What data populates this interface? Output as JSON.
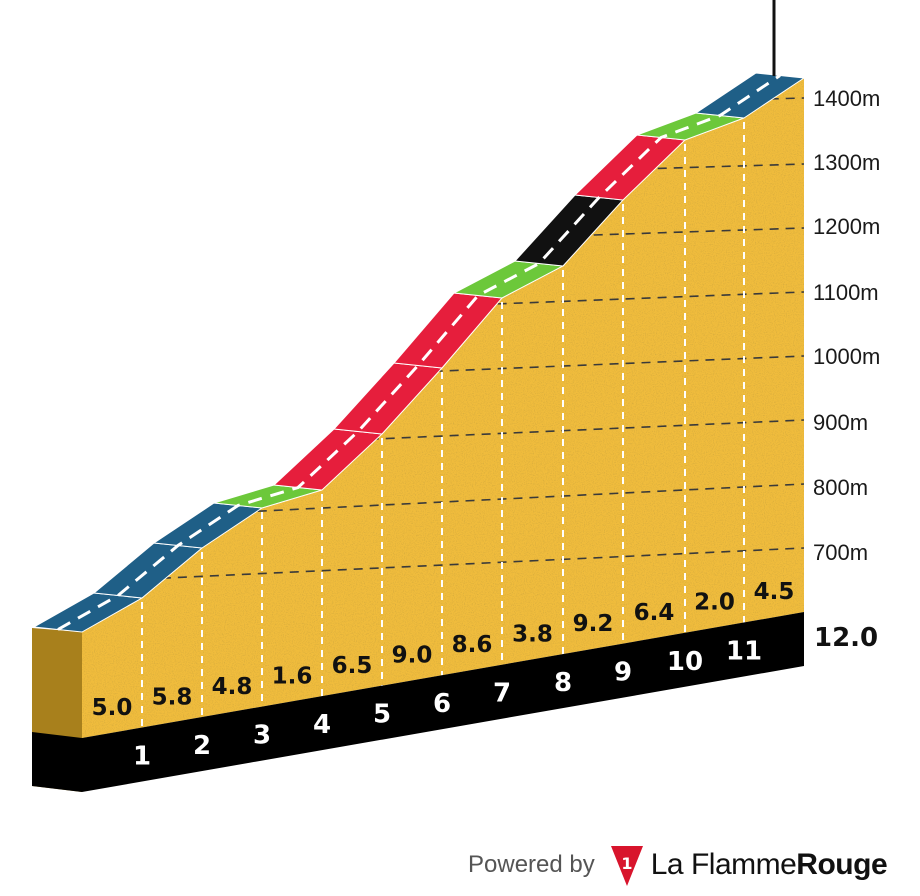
{
  "chart_data": {
    "type": "area",
    "title": "",
    "x_unit": "km",
    "y_unit": "m",
    "distance_total": "12.0",
    "km_markers": [
      "1",
      "2",
      "3",
      "4",
      "5",
      "6",
      "7",
      "8",
      "9",
      "10",
      "11"
    ],
    "y_ticks": [
      "700m",
      "800m",
      "900m",
      "1000m",
      "1100m",
      "1200m",
      "1300m",
      "1400m"
    ],
    "y_tick_values": [
      700,
      800,
      900,
      1000,
      1100,
      1200,
      1300,
      1400
    ],
    "segments": [
      {
        "gradient": "5.0",
        "color": "#1f5f87"
      },
      {
        "gradient": "5.8",
        "color": "#1f5f87"
      },
      {
        "gradient": "4.8",
        "color": "#1f5f87"
      },
      {
        "gradient": "1.6",
        "color": "#6cc83a"
      },
      {
        "gradient": "6.5",
        "color": "#e61e3c"
      },
      {
        "gradient": "9.0",
        "color": "#e61e3c"
      },
      {
        "gradient": "8.6",
        "color": "#e61e3c"
      },
      {
        "gradient": "3.8",
        "color": "#6cc83a"
      },
      {
        "gradient": "9.2",
        "color": "#111111"
      },
      {
        "gradient": "6.4",
        "color": "#e61e3c"
      },
      {
        "gradient": "2.0",
        "color": "#6cc83a"
      },
      {
        "gradient": "4.5",
        "color": "#1f5f87"
      }
    ],
    "legend": "none",
    "grid": true
  },
  "colors": {
    "fill": "#f0bc3c",
    "fill_dark": "#a8801c",
    "base": "#000000",
    "grid": "#3a3a3a"
  },
  "footer": {
    "powered_by": "Powered by",
    "brand_regular": "La Flamme",
    "brand_bold": "Rouge",
    "logo_numeral": "1"
  }
}
